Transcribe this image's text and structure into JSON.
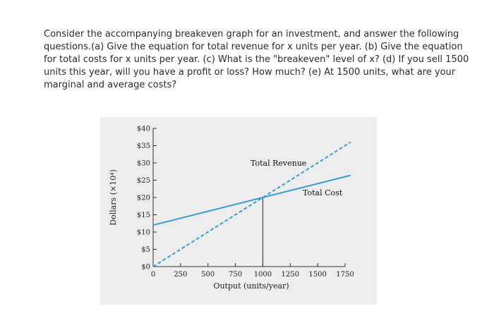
{
  "question": {
    "text": "Consider the accompanying breakeven graph for an investment, and answer the following questions.(a) Give the equation for total revenue for x units per year. (b) Give the equation for total costs for x units per year. (c) What is the \"breakeven\" level of x? (d) If you sell 1500 units this year, will you have a profit or loss? How much? (e) At 1500 units, what are your marginal and average costs?"
  },
  "chart_data": {
    "type": "line",
    "xlabel": "Output (units/year)",
    "ylabel": "Dollars (×10⁴)",
    "xlim": [
      0,
      1750
    ],
    "ylim": [
      0,
      40
    ],
    "x_ticks": [
      0,
      250,
      500,
      750,
      1000,
      1250,
      1500,
      1750
    ],
    "x_tick_labels": [
      "0",
      "250",
      "500",
      "750",
      "1000",
      "1250",
      "1500",
      "1750"
    ],
    "y_ticks": [
      0,
      5,
      10,
      15,
      20,
      25,
      30,
      35,
      40
    ],
    "y_tick_labels": [
      "$0",
      "$5",
      "$10",
      "$15",
      "$20",
      "$25",
      "$30",
      "$35",
      "$40"
    ],
    "grid": false,
    "series": [
      {
        "name": "Total Revenue",
        "style": "dashed",
        "color": "#3a9fd0",
        "x": [
          0,
          1000,
          1800
        ],
        "y": [
          0,
          20,
          36
        ]
      },
      {
        "name": "Total Cost",
        "style": "solid",
        "color": "#3a9fd0",
        "x": [
          0,
          1000,
          1800
        ],
        "y": [
          12,
          20,
          26.4
        ]
      }
    ],
    "annotations": [
      {
        "type": "vertical-line",
        "x": 1000,
        "y_from": 0,
        "y_to": 20
      }
    ]
  }
}
